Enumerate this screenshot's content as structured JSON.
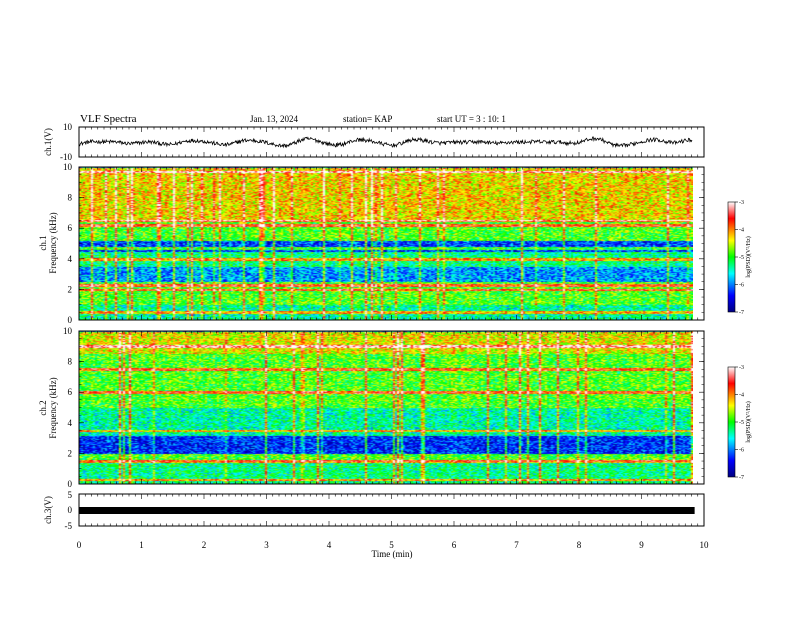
{
  "header": {
    "title": "VLF Spectra",
    "date": "Jan. 13, 2024",
    "station": "station= KAP",
    "start_time": "start  UT =   3 : 10: 1"
  },
  "chart_data": [
    {
      "type": "line",
      "name": "ch1-waveform",
      "ylabel": "ch.1(V)",
      "ylim": [
        -10,
        10
      ],
      "yticks": [
        "10",
        "-10"
      ],
      "xlim": [
        0,
        10
      ],
      "approx_peaks_min": [
        0.6,
        1.7,
        2.6,
        3.6,
        4.4,
        5.3,
        6.0,
        6.9,
        7.7,
        8.3,
        9.3,
        9.7
      ],
      "approx_amplitude_V": 4
    },
    {
      "type": "heatmap",
      "name": "ch1-spectrogram",
      "ylabel": "ch.1\nFrequency (kHz)",
      "ylim": [
        0,
        10
      ],
      "yticks": [
        "0",
        "2",
        "4",
        "6",
        "8",
        "10"
      ],
      "xlim": [
        0,
        9.85
      ],
      "colorbar": {
        "label": "log(PSD)(V²/Hz)",
        "range": [
          -7,
          -3
        ],
        "ticks": [
          "-3",
          "-4",
          "-5",
          "-6",
          "-7"
        ]
      },
      "bands": [
        {
          "from": 0.0,
          "to": 1.0,
          "level": -5.4
        },
        {
          "from": 1.0,
          "to": 2.5,
          "level": -4.9
        },
        {
          "from": 2.5,
          "to": 3.5,
          "level": -5.9
        },
        {
          "from": 3.5,
          "to": 4.5,
          "level": -5.3
        },
        {
          "from": 4.5,
          "to": 5.2,
          "level": -6.2
        },
        {
          "from": 5.2,
          "to": 6.5,
          "level": -4.9
        },
        {
          "from": 6.5,
          "to": 10.0,
          "level": -4.3
        }
      ],
      "lines_kHz": [
        0.5,
        2.0,
        2.3,
        4.0,
        4.7,
        6.2,
        6.5,
        9.7
      ]
    },
    {
      "type": "heatmap",
      "name": "ch2-spectrogram",
      "ylabel": "ch.2\nFrequency (kHz)",
      "ylim": [
        0,
        10
      ],
      "yticks": [
        "0",
        "2",
        "4",
        "6",
        "8",
        "10"
      ],
      "xlim": [
        0,
        9.85
      ],
      "colorbar": {
        "label": "log(PSD)(V²/Hz)",
        "range": [
          -7,
          -3
        ],
        "ticks": [
          "-3",
          "-4",
          "-5",
          "-6",
          "-7"
        ]
      },
      "bands": [
        {
          "from": 0.0,
          "to": 1.5,
          "level": -5.3
        },
        {
          "from": 1.5,
          "to": 2.0,
          "level": -4.9
        },
        {
          "from": 2.0,
          "to": 3.2,
          "level": -6.3
        },
        {
          "from": 3.2,
          "to": 5.0,
          "level": -5.4
        },
        {
          "from": 5.0,
          "to": 8.5,
          "level": -4.9
        },
        {
          "from": 8.5,
          "to": 10.0,
          "level": -4.4
        }
      ],
      "lines_kHz": [
        0.3,
        1.5,
        3.5,
        6.0,
        7.5,
        9.0
      ]
    },
    {
      "type": "line",
      "name": "ch3-waveform",
      "ylabel": "ch.3(V)",
      "ylim": [
        -5,
        5
      ],
      "yticks": [
        "5",
        "0",
        "-5"
      ],
      "xlim": [
        0,
        9.85
      ],
      "constant_value_V": 0
    }
  ],
  "xaxis": {
    "label": "Time (min)",
    "ticks": [
      "0",
      "1",
      "2",
      "3",
      "4",
      "5",
      "6",
      "7",
      "8",
      "9",
      "10"
    ],
    "xlim": [
      0,
      10
    ]
  }
}
